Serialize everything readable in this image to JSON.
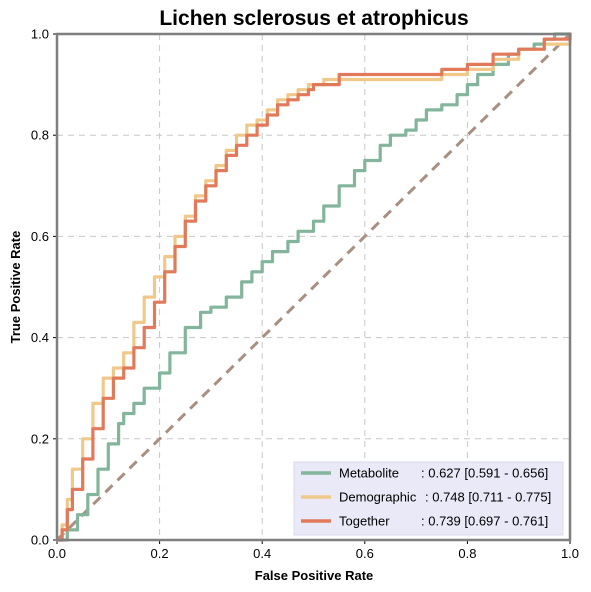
{
  "chart_data": {
    "type": "line",
    "title": "Lichen sclerosus et atrophicus",
    "xlabel": "False Positive Rate",
    "ylabel": "True Positive Rate",
    "xlim": [
      0,
      1
    ],
    "ylim": [
      0,
      1
    ],
    "xticks": [
      "0.0",
      "0.2",
      "0.4",
      "0.6",
      "0.8",
      "1.0"
    ],
    "yticks": [
      "0.0",
      "0.2",
      "0.4",
      "0.6",
      "0.8",
      "1.0"
    ],
    "grid": true,
    "legend_position": "bottom-right",
    "chance_line": {
      "x": [
        0,
        1
      ],
      "y": [
        0,
        1
      ],
      "color": "#a88f82"
    },
    "series": [
      {
        "name": "Metabolite",
        "label_name": "Metabolite",
        "label_value": ": 0.627 [0.591 - 0.656]",
        "color": "#82b59b",
        "x": [
          0,
          0.02,
          0.04,
          0.06,
          0.08,
          0.1,
          0.12,
          0.13,
          0.15,
          0.17,
          0.2,
          0.22,
          0.25,
          0.28,
          0.3,
          0.33,
          0.36,
          0.38,
          0.4,
          0.42,
          0.45,
          0.47,
          0.5,
          0.52,
          0.55,
          0.58,
          0.6,
          0.63,
          0.65,
          0.68,
          0.7,
          0.72,
          0.75,
          0.78,
          0.8,
          0.82,
          0.85,
          0.88,
          0.9,
          0.93,
          0.95,
          0.97,
          1.0
        ],
        "y": [
          0,
          0.02,
          0.05,
          0.09,
          0.14,
          0.19,
          0.23,
          0.25,
          0.27,
          0.3,
          0.33,
          0.37,
          0.42,
          0.45,
          0.46,
          0.48,
          0.51,
          0.53,
          0.55,
          0.57,
          0.59,
          0.61,
          0.63,
          0.66,
          0.7,
          0.73,
          0.75,
          0.78,
          0.8,
          0.81,
          0.83,
          0.85,
          0.86,
          0.88,
          0.9,
          0.92,
          0.94,
          0.96,
          0.97,
          0.98,
          0.99,
          1.0,
          1.0
        ]
      },
      {
        "name": "Demographic",
        "label_name": "Demographic",
        "label_value": ": 0.748 [0.711 - 0.775]",
        "color": "#f0c98a",
        "x": [
          0,
          0.01,
          0.02,
          0.03,
          0.05,
          0.07,
          0.09,
          0.11,
          0.13,
          0.15,
          0.17,
          0.19,
          0.21,
          0.23,
          0.25,
          0.27,
          0.29,
          0.31,
          0.33,
          0.35,
          0.37,
          0.39,
          0.41,
          0.43,
          0.45,
          0.47,
          0.49,
          0.52,
          0.55,
          0.6,
          0.65,
          0.7,
          0.75,
          0.8,
          0.85,
          0.9,
          0.95,
          1.0
        ],
        "y": [
          0,
          0.03,
          0.08,
          0.14,
          0.2,
          0.27,
          0.32,
          0.34,
          0.37,
          0.43,
          0.48,
          0.52,
          0.56,
          0.6,
          0.64,
          0.68,
          0.71,
          0.74,
          0.77,
          0.8,
          0.82,
          0.83,
          0.85,
          0.87,
          0.88,
          0.89,
          0.9,
          0.91,
          0.91,
          0.91,
          0.91,
          0.91,
          0.92,
          0.93,
          0.95,
          0.97,
          0.98,
          1.0
        ]
      },
      {
        "name": "Together",
        "label_name": "Together",
        "label_value": ": 0.739 [0.697 - 0.761]",
        "color": "#e07a5a",
        "x": [
          0,
          0.01,
          0.02,
          0.03,
          0.05,
          0.07,
          0.09,
          0.11,
          0.13,
          0.15,
          0.17,
          0.19,
          0.21,
          0.23,
          0.25,
          0.27,
          0.29,
          0.31,
          0.33,
          0.35,
          0.37,
          0.39,
          0.41,
          0.43,
          0.45,
          0.47,
          0.49,
          0.5,
          0.55,
          0.6,
          0.65,
          0.7,
          0.75,
          0.8,
          0.85,
          0.9,
          0.95,
          1.0
        ],
        "y": [
          0,
          0.02,
          0.06,
          0.1,
          0.16,
          0.22,
          0.28,
          0.32,
          0.34,
          0.38,
          0.42,
          0.47,
          0.53,
          0.58,
          0.63,
          0.67,
          0.7,
          0.73,
          0.76,
          0.78,
          0.8,
          0.82,
          0.84,
          0.86,
          0.87,
          0.88,
          0.89,
          0.9,
          0.92,
          0.92,
          0.92,
          0.92,
          0.93,
          0.94,
          0.96,
          0.97,
          0.99,
          1.0
        ]
      }
    ]
  }
}
